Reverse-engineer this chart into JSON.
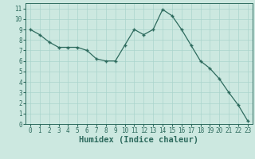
{
  "x": [
    0,
    1,
    2,
    3,
    4,
    5,
    6,
    7,
    8,
    9,
    10,
    11,
    12,
    13,
    14,
    15,
    16,
    17,
    18,
    19,
    20,
    21,
    22,
    23
  ],
  "y": [
    9,
    8.5,
    7.8,
    7.3,
    7.3,
    7.3,
    7.0,
    6.2,
    6.0,
    6.0,
    7.5,
    9.0,
    8.5,
    9.0,
    10.9,
    10.3,
    9.0,
    7.5,
    6.0,
    5.3,
    4.3,
    3.0,
    1.8,
    0.3
  ],
  "line_color": "#2e6b5e",
  "marker": "+",
  "marker_size": 3.5,
  "marker_lw": 1.0,
  "lw": 0.9,
  "bg_color": "#cce8e0",
  "grid_color": "#aad4cc",
  "xlabel": "Humidex (Indice chaleur)",
  "xlim": [
    -0.5,
    23.5
  ],
  "ylim": [
    0,
    11.5
  ],
  "yticks": [
    0,
    1,
    2,
    3,
    4,
    5,
    6,
    7,
    8,
    9,
    10,
    11
  ],
  "xticks": [
    0,
    1,
    2,
    3,
    4,
    5,
    6,
    7,
    8,
    9,
    10,
    11,
    12,
    13,
    14,
    15,
    16,
    17,
    18,
    19,
    20,
    21,
    22,
    23
  ],
  "tick_fontsize": 5.5,
  "xlabel_fontsize": 7.5,
  "xlabel_fontweight": "bold"
}
